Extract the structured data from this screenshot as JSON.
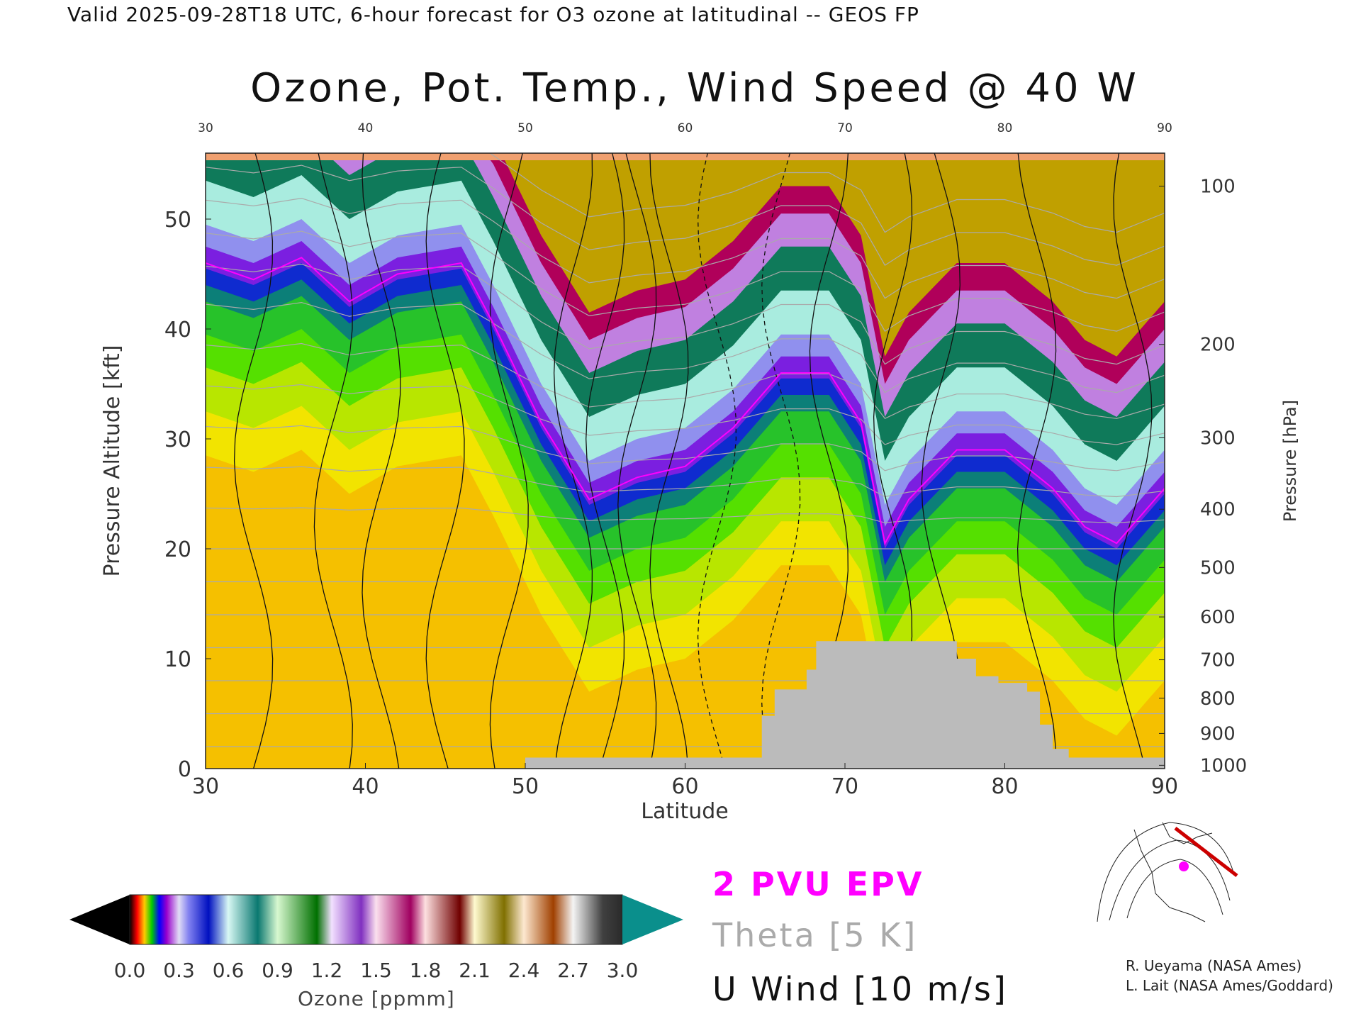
{
  "header": {
    "validity": "Valid 2025-09-28T18 UTC, 6-hour forecast for O3 ozone at latitudinal -- GEOS FP"
  },
  "chart_data": {
    "type": "heatmap",
    "title": "Ozone, Pot. Temp., Wind Speed @ 40 W",
    "xlabel": "Latitude",
    "ylabel": "Pressure Altitude [kft]",
    "y2label": "Pressure [hPa]",
    "xlim": [
      30,
      90
    ],
    "ylim": [
      0,
      56
    ],
    "x_ticks": [
      "30",
      "40",
      "50",
      "60",
      "70",
      "80",
      "90"
    ],
    "y_ticks": [
      "0",
      "10",
      "20",
      "30",
      "40",
      "50"
    ],
    "y_tick_values": [
      0,
      10,
      20,
      30,
      40,
      50
    ],
    "pressure_ticks": [
      {
        "label": "100",
        "kft": 53.0
      },
      {
        "label": "200",
        "kft": 38.6
      },
      {
        "label": "300",
        "kft": 30.1
      },
      {
        "label": "400",
        "kft": 23.6
      },
      {
        "label": "500",
        "kft": 18.3
      },
      {
        "label": "600",
        "kft": 13.8
      },
      {
        "label": "700",
        "kft": 9.9
      },
      {
        "label": "800",
        "kft": 6.4
      },
      {
        "label": "900",
        "kft": 3.2
      },
      {
        "label": "1000",
        "kft": 0.3
      }
    ],
    "grid": false,
    "colorbar": {
      "label": "Ozone [ppmm]",
      "tick_labels": [
        "0.0",
        "0.3",
        "0.6",
        "0.9",
        "1.2",
        "1.5",
        "1.8",
        "2.1",
        "2.4",
        "2.7",
        "3.0"
      ],
      "range": [
        0.0,
        3.0
      ]
    },
    "ozone_levels": [
      {
        "ppmm": 0.3,
        "color": "#f5c000"
      },
      {
        "ppmm": 0.4,
        "color": "#f2e400"
      },
      {
        "ppmm": 0.45,
        "color": "#b8e600"
      },
      {
        "ppmm": 0.5,
        "color": "#55e000"
      },
      {
        "ppmm": 0.55,
        "color": "#27c22a"
      },
      {
        "ppmm": 0.6,
        "color": "#0c7f78"
      },
      {
        "ppmm": 0.65,
        "color": "#0f2bcf"
      },
      {
        "ppmm": 0.7,
        "color": "#7b1fe0"
      },
      {
        "ppmm": 0.85,
        "color": "#9090ee"
      },
      {
        "ppmm": 1.0,
        "color": "#a9ecdf"
      },
      {
        "ppmm": 1.3,
        "color": "#0f7a5a"
      },
      {
        "ppmm": 1.6,
        "color": "#c080e0"
      },
      {
        "ppmm": 1.9,
        "color": "#b0005a"
      },
      {
        "ppmm": 2.3,
        "color": "#c0a000"
      }
    ],
    "tropopause_kft": [
      {
        "lat": 30,
        "kft": 45.5
      },
      {
        "lat": 33,
        "kft": 44.0
      },
      {
        "lat": 36,
        "kft": 46.0
      },
      {
        "lat": 39,
        "kft": 42.0
      },
      {
        "lat": 42,
        "kft": 44.5
      },
      {
        "lat": 46,
        "kft": 45.5
      },
      {
        "lat": 48,
        "kft": 40.0
      },
      {
        "lat": 51,
        "kft": 31.0
      },
      {
        "lat": 54,
        "kft": 24.0
      },
      {
        "lat": 57,
        "kft": 26.0
      },
      {
        "lat": 60,
        "kft": 27.0
      },
      {
        "lat": 63,
        "kft": 30.5
      },
      {
        "lat": 66,
        "kft": 35.5
      },
      {
        "lat": 69,
        "kft": 35.5
      },
      {
        "lat": 71,
        "kft": 31.0
      },
      {
        "lat": 72.5,
        "kft": 20.0
      },
      {
        "lat": 74,
        "kft": 24.0
      },
      {
        "lat": 77,
        "kft": 28.5
      },
      {
        "lat": 80,
        "kft": 28.5
      },
      {
        "lat": 83,
        "kft": 25.0
      },
      {
        "lat": 85,
        "kft": 21.5
      },
      {
        "lat": 87,
        "kft": 20.0
      },
      {
        "lat": 90,
        "kft": 25.0
      }
    ],
    "terrain_kft": [
      {
        "lat": 50,
        "kft": 0.0
      },
      {
        "lat": 50,
        "kft": 1.0
      },
      {
        "lat": 64.8,
        "kft": 1.0
      },
      {
        "lat": 64.8,
        "kft": 4.8
      },
      {
        "lat": 65.6,
        "kft": 4.8
      },
      {
        "lat": 65.6,
        "kft": 7.2
      },
      {
        "lat": 67.6,
        "kft": 7.2
      },
      {
        "lat": 67.6,
        "kft": 9.0
      },
      {
        "lat": 68.2,
        "kft": 9.0
      },
      {
        "lat": 68.2,
        "kft": 11.6
      },
      {
        "lat": 77.0,
        "kft": 11.6
      },
      {
        "lat": 77.0,
        "kft": 10.0
      },
      {
        "lat": 78.2,
        "kft": 10.0
      },
      {
        "lat": 78.2,
        "kft": 8.4
      },
      {
        "lat": 79.6,
        "kft": 8.4
      },
      {
        "lat": 79.6,
        "kft": 7.8
      },
      {
        "lat": 81.4,
        "kft": 7.8
      },
      {
        "lat": 81.4,
        "kft": 7.0
      },
      {
        "lat": 82.2,
        "kft": 7.0
      },
      {
        "lat": 82.2,
        "kft": 4.0
      },
      {
        "lat": 83.0,
        "kft": 4.0
      },
      {
        "lat": 83.0,
        "kft": 1.8
      },
      {
        "lat": 84.0,
        "kft": 1.8
      },
      {
        "lat": 84.0,
        "kft": 1.0
      },
      {
        "lat": 90,
        "kft": 1.0
      },
      {
        "lat": 90,
        "kft": 0.0
      }
    ]
  },
  "legend": {
    "epv": "2 PVU EPV",
    "theta": "Theta [5 K]",
    "uwind": "U Wind [10 m/s]"
  },
  "credits": {
    "line1": "R. Ueyama (NASA Ames)",
    "line2": "L. Lait (NASA Ames/Goddard)"
  },
  "colors": {
    "epv": "#ff00ff",
    "theta": "#aaaaaa",
    "terrain": "#bbbbbb",
    "stratosphere_top": "#f0a070"
  }
}
